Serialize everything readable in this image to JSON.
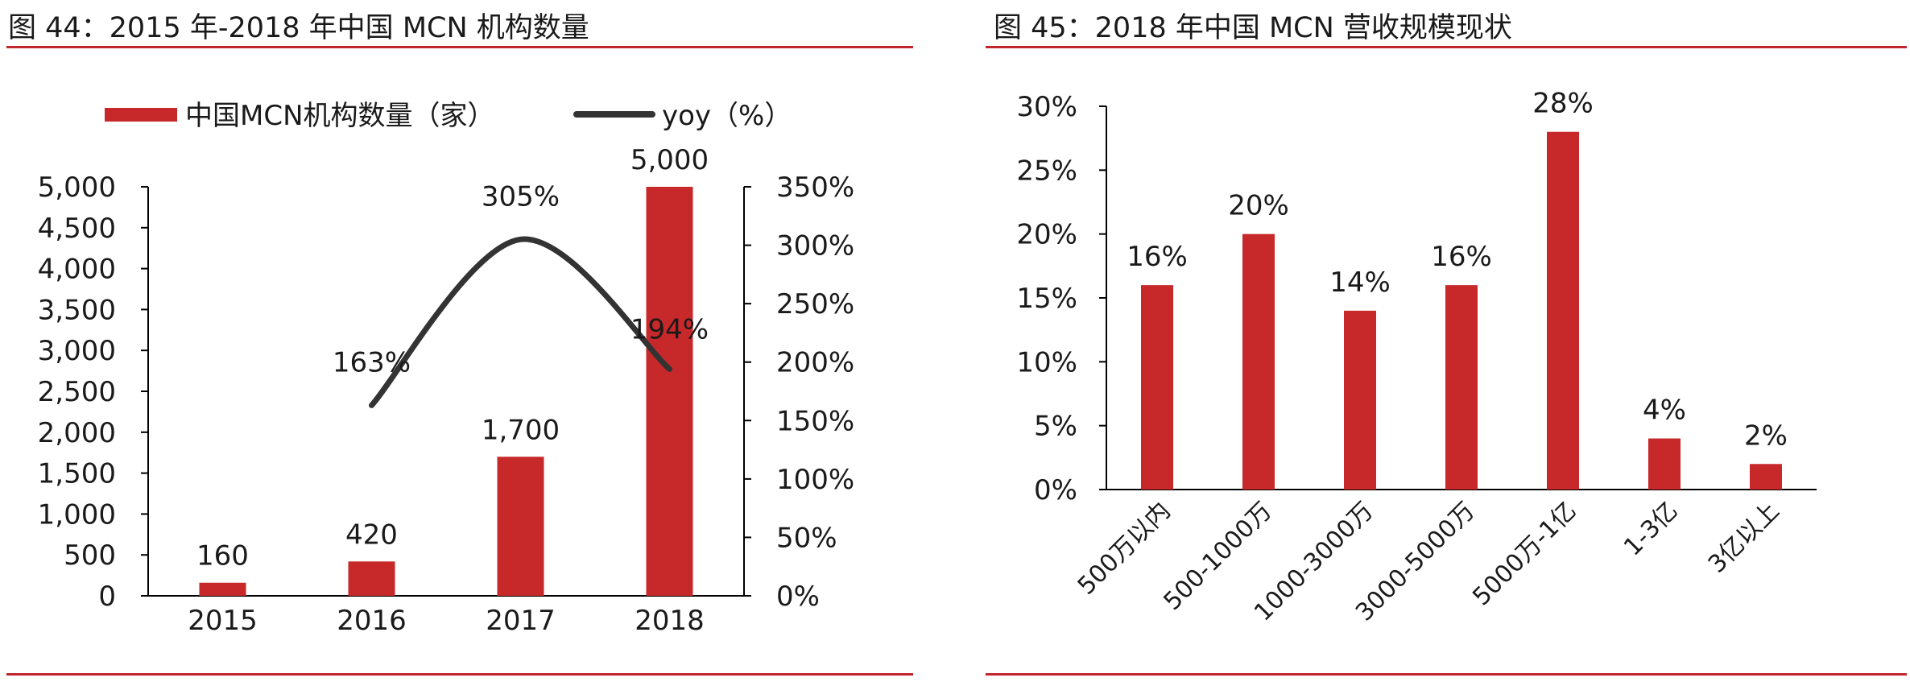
{
  "colors": {
    "bar": "#c7282a",
    "line": "#333333",
    "rule": "#c0272d"
  },
  "left": {
    "title": "图 44：2015 年-2018 年中国 MCN 机构数量",
    "chart_data": {
      "type": "bar",
      "categories": [
        "2015",
        "2016",
        "2017",
        "2018"
      ],
      "series": [
        {
          "name": "中国MCN机构数量（家）",
          "type": "bar",
          "axis": "left",
          "values": [
            160,
            420,
            1700,
            5000
          ],
          "labels": [
            "160",
            "420",
            "1,700",
            "5,000"
          ]
        },
        {
          "name": "yoy（%）",
          "type": "line",
          "axis": "right",
          "values": [
            null,
            163,
            305,
            194
          ],
          "labels": [
            "",
            "163%",
            "305%",
            "194%"
          ]
        }
      ],
      "y_left": {
        "ylim": [
          0,
          5000
        ],
        "ticks": [
          "0",
          "500",
          "1,000",
          "1,500",
          "2,000",
          "2,500",
          "3,000",
          "3,500",
          "4,000",
          "4,500",
          "5,000"
        ]
      },
      "y_right": {
        "ylim": [
          0,
          350
        ],
        "ticks": [
          "0%",
          "50%",
          "100%",
          "150%",
          "200%",
          "250%",
          "300%",
          "350%"
        ]
      },
      "legend_position": "top",
      "grid": false
    }
  },
  "right": {
    "title": "图 45：2018 年中国 MCN 营收规模现状",
    "chart_data": {
      "type": "bar",
      "categories": [
        "500万以内",
        "500-1000万",
        "1000-3000万",
        "3000-5000万",
        "5000万-1亿",
        "1-3亿",
        "3亿以上"
      ],
      "values": [
        16,
        20,
        14,
        16,
        28,
        4,
        2
      ],
      "labels": [
        "16%",
        "20%",
        "14%",
        "16%",
        "28%",
        "4%",
        "2%"
      ],
      "ylim": [
        0,
        30
      ],
      "ticks": [
        "0%",
        "5%",
        "10%",
        "15%",
        "20%",
        "25%",
        "30%"
      ],
      "grid": false
    }
  }
}
